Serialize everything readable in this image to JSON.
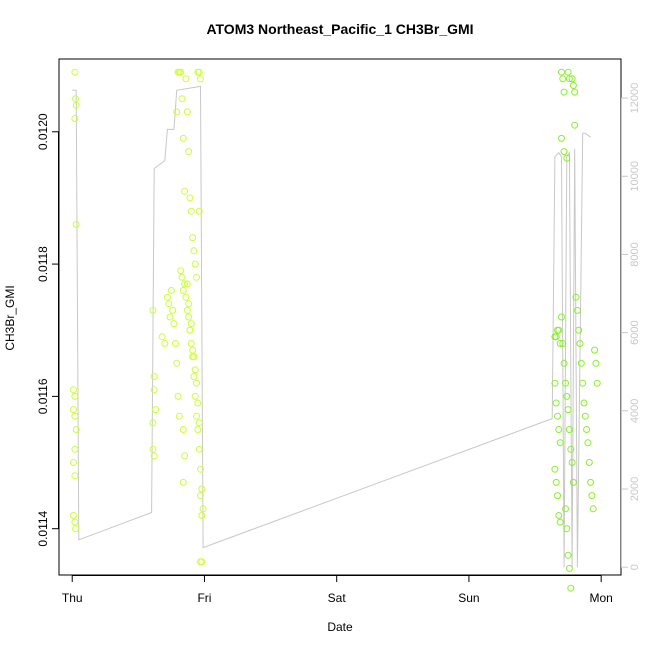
{
  "chart_data": {
    "type": "scatter",
    "title": "ATOM3 Northeast_Pacific_1 CH3Br_GMI",
    "xlabel": "Date",
    "ylabel": "CH3Br_GMI",
    "x_tick_labels": [
      "Thu",
      "Fri",
      "Sat",
      "Sun",
      "Mon"
    ],
    "x_ticks": [
      0,
      1,
      2,
      3,
      4
    ],
    "xlim": [
      -0.1,
      4.15
    ],
    "ylim": [
      0.01133,
      0.01211
    ],
    "y_ticks": [
      0.0114,
      0.0116,
      0.0118,
      0.012
    ],
    "y_tick_labels": [
      "0.0114",
      "0.0116",
      "0.0118",
      "0.0120"
    ],
    "y2lim": [
      -200,
      13000
    ],
    "y2_ticks": [
      0,
      2000,
      4000,
      6000,
      8000,
      10000,
      12000
    ],
    "y2_tick_labels": [
      "0",
      "2000",
      "4000",
      "6000",
      "8000",
      "10000",
      "12000"
    ],
    "grid": false,
    "colors": {
      "points_early": "#ccff33",
      "points_mid": "#b3f51f",
      "points_late": "#88f02a",
      "altitude_line": "#c8c8c8",
      "axis": "#000000"
    },
    "series": [
      {
        "values": [
          [
            0.02,
            0.01209
          ],
          [
            0.025,
            0.01205
          ],
          [
            0.03,
            0.01204
          ],
          [
            0.02,
            0.01202
          ],
          [
            0.03,
            0.01186
          ],
          [
            0.01,
            0.01161
          ],
          [
            0.02,
            0.0116
          ],
          [
            0.01,
            0.01158
          ],
          [
            0.02,
            0.01157
          ],
          [
            0.03,
            0.01155
          ],
          [
            0.02,
            0.01152
          ],
          [
            0.01,
            0.0115
          ],
          [
            0.02,
            0.01148
          ],
          [
            0.01,
            0.01142
          ],
          [
            0.02,
            0.01141
          ],
          [
            0.025,
            0.0114
          ],
          [
            0.61,
            0.01173
          ],
          [
            0.62,
            0.01163
          ],
          [
            0.62,
            0.01161
          ],
          [
            0.63,
            0.01158
          ],
          [
            0.61,
            0.01156
          ],
          [
            0.61,
            0.01152
          ],
          [
            0.62,
            0.01151
          ],
          [
            0.68,
            0.01169
          ],
          [
            0.7,
            0.01168
          ],
          [
            0.72,
            0.01175
          ],
          [
            0.73,
            0.01174
          ],
          [
            0.74,
            0.01172
          ],
          [
            0.75,
            0.01176
          ],
          [
            0.76,
            0.01173
          ],
          [
            0.77,
            0.01171
          ],
          [
            0.78,
            0.01168
          ],
          [
            0.79,
            0.01165
          ],
          [
            0.8,
            0.0116
          ],
          [
            0.81,
            0.01157
          ],
          [
            0.79,
            0.01203
          ],
          [
            0.8,
            0.01209
          ],
          [
            0.81,
            0.01209
          ],
          [
            0.82,
            0.01209
          ],
          [
            0.83,
            0.01205
          ],
          [
            0.84,
            0.01199
          ],
          [
            0.85,
            0.01191
          ],
          [
            0.82,
            0.01179
          ],
          [
            0.83,
            0.01178
          ],
          [
            0.84,
            0.01176
          ],
          [
            0.85,
            0.01177
          ],
          [
            0.86,
            0.01175
          ],
          [
            0.87,
            0.01173
          ],
          [
            0.88,
            0.01172
          ],
          [
            0.89,
            0.0117
          ],
          [
            0.9,
            0.01168
          ],
          [
            0.91,
            0.01166
          ],
          [
            0.92,
            0.01163
          ],
          [
            0.93,
            0.0116
          ],
          [
            0.94,
            0.01157
          ],
          [
            0.95,
            0.01155
          ],
          [
            0.96,
            0.01152
          ],
          [
            0.97,
            0.01149
          ],
          [
            0.98,
            0.01146
          ],
          [
            0.99,
            0.01143
          ],
          [
            0.86,
            0.01208
          ],
          [
            0.87,
            0.01203
          ],
          [
            0.88,
            0.01197
          ],
          [
            0.89,
            0.0119
          ],
          [
            0.9,
            0.01188
          ],
          [
            0.91,
            0.01184
          ],
          [
            0.92,
            0.01182
          ],
          [
            0.93,
            0.0118
          ],
          [
            0.94,
            0.01178
          ],
          [
            0.95,
            0.01209
          ],
          [
            0.96,
            0.01209
          ],
          [
            0.97,
            0.01208
          ],
          [
            0.96,
            0.01188
          ],
          [
            0.97,
            0.01135
          ],
          [
            0.98,
            0.01135
          ],
          [
            0.87,
            0.01177
          ],
          [
            0.88,
            0.01174
          ],
          [
            0.89,
            0.0117
          ],
          [
            0.9,
            0.01171
          ],
          [
            0.91,
            0.01167
          ],
          [
            0.92,
            0.01166
          ],
          [
            0.93,
            0.01164
          ],
          [
            0.94,
            0.01162
          ],
          [
            0.95,
            0.01159
          ],
          [
            0.96,
            0.01156
          ],
          [
            0.84,
            0.01155
          ],
          [
            0.85,
            0.01151
          ],
          [
            0.84,
            0.01147
          ],
          [
            0.97,
            0.01145
          ],
          [
            0.98,
            0.01142
          ]
        ],
        "color": "#ccff33"
      },
      {
        "values": [
          [
            3.65,
            0.01169
          ],
          [
            3.66,
            0.01169
          ],
          [
            3.67,
            0.0117
          ],
          [
            3.68,
            0.0117
          ],
          [
            3.69,
            0.01168
          ],
          [
            3.65,
            0.01162
          ],
          [
            3.66,
            0.01159
          ],
          [
            3.67,
            0.01157
          ],
          [
            3.68,
            0.01155
          ],
          [
            3.69,
            0.01153
          ],
          [
            3.65,
            0.01149
          ],
          [
            3.66,
            0.01147
          ],
          [
            3.67,
            0.01145
          ],
          [
            3.68,
            0.01142
          ],
          [
            3.69,
            0.01141
          ],
          [
            3.7,
            0.01172
          ],
          [
            3.71,
            0.01168
          ],
          [
            3.72,
            0.01165
          ],
          [
            3.73,
            0.01162
          ],
          [
            3.74,
            0.0116
          ],
          [
            3.75,
            0.01158
          ],
          [
            3.76,
            0.01155
          ],
          [
            3.77,
            0.01152
          ],
          [
            3.78,
            0.0115
          ],
          [
            3.79,
            0.01147
          ],
          [
            3.7,
            0.01209
          ],
          [
            3.71,
            0.01208
          ],
          [
            3.72,
            0.01206
          ],
          [
            3.75,
            0.01209
          ],
          [
            3.76,
            0.01208
          ],
          [
            3.7,
            0.01199
          ],
          [
            3.72,
            0.01197
          ],
          [
            3.74,
            0.01196
          ],
          [
            3.73,
            0.01143
          ],
          [
            3.74,
            0.0114
          ],
          [
            3.75,
            0.01136
          ],
          [
            3.76,
            0.01134
          ],
          [
            3.77,
            0.01131
          ],
          [
            3.8,
            0.01201
          ],
          [
            3.81,
            0.01175
          ],
          [
            3.82,
            0.01173
          ],
          [
            3.83,
            0.0117
          ],
          [
            3.84,
            0.01168
          ],
          [
            3.85,
            0.01165
          ],
          [
            3.86,
            0.01162
          ],
          [
            3.87,
            0.01159
          ],
          [
            3.88,
            0.01157
          ],
          [
            3.89,
            0.01155
          ],
          [
            3.9,
            0.01153
          ],
          [
            3.91,
            0.0115
          ],
          [
            3.92,
            0.01147
          ],
          [
            3.93,
            0.01145
          ],
          [
            3.94,
            0.01143
          ],
          [
            3.95,
            0.01167
          ],
          [
            3.96,
            0.01165
          ],
          [
            3.97,
            0.01162
          ],
          [
            3.78,
            0.01208
          ],
          [
            3.79,
            0.01207
          ],
          [
            3.8,
            0.01206
          ]
        ],
        "color": "#88f02a"
      }
    ],
    "altitude_line": [
      [
        0.0,
        12200
      ],
      [
        0.03,
        12200
      ],
      [
        0.05,
        700
      ],
      [
        0.6,
        1400
      ],
      [
        0.62,
        10200
      ],
      [
        0.7,
        10400
      ],
      [
        0.72,
        11200
      ],
      [
        0.77,
        11200
      ],
      [
        0.79,
        12200
      ],
      [
        0.97,
        12300
      ],
      [
        0.99,
        500
      ],
      [
        3.63,
        3800
      ],
      [
        3.65,
        10500
      ],
      [
        3.68,
        10600
      ],
      [
        3.7,
        10500
      ],
      [
        3.72,
        0
      ],
      [
        3.74,
        10500
      ],
      [
        3.76,
        10600
      ],
      [
        3.78,
        0
      ],
      [
        3.8,
        10700
      ],
      [
        3.82,
        0
      ],
      [
        3.86,
        11100
      ],
      [
        3.88,
        11100
      ],
      [
        3.92,
        11000
      ]
    ]
  }
}
